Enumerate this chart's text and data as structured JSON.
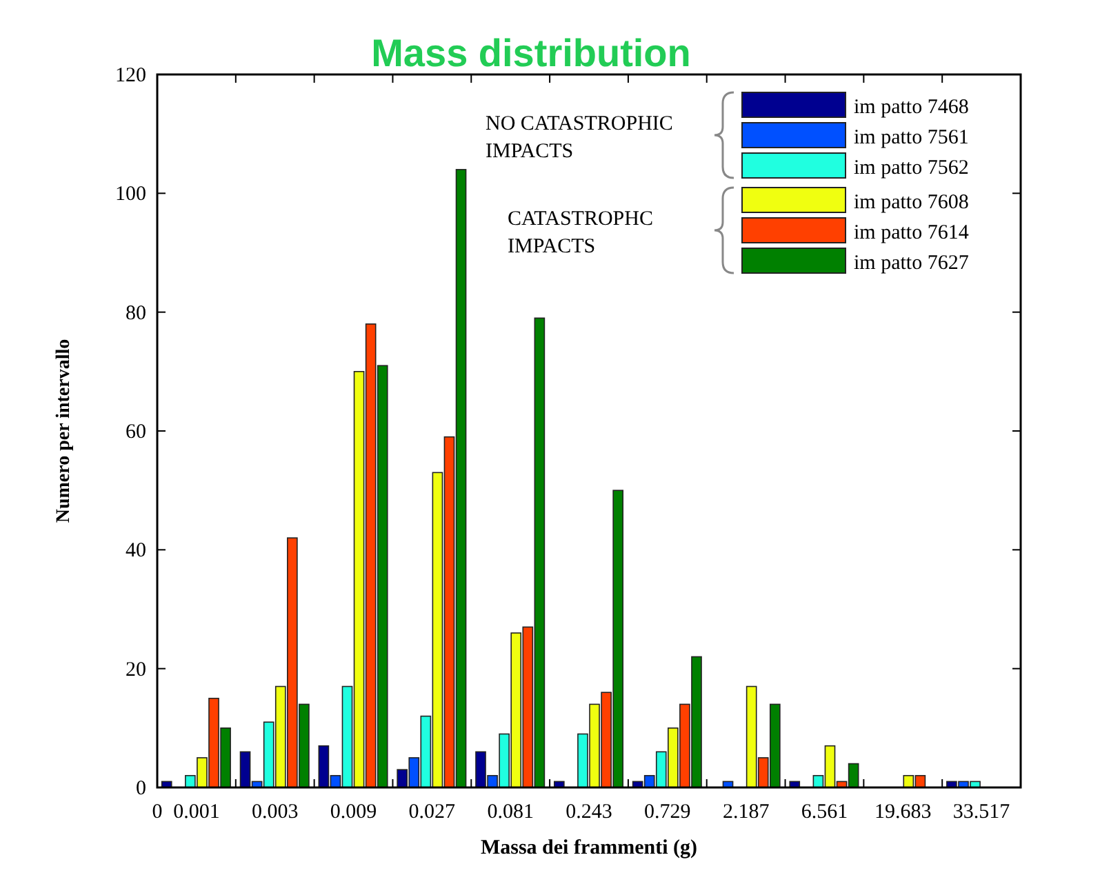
{
  "chart_data": {
    "type": "bar",
    "title": "Mass distribution",
    "xlabel": "Massa dei frammenti (g)",
    "ylabel": "Numero per intervallo",
    "categories": [
      "0.001",
      "0.003",
      "0.009",
      "0.027",
      "0.081",
      "0.243",
      "0.729",
      "2.187",
      "6.561",
      "19.683",
      "33.517"
    ],
    "ylim": [
      0,
      120
    ],
    "yticks": [
      0,
      20,
      40,
      60,
      80,
      100,
      120
    ],
    "legend": "top right",
    "grid": false,
    "annotations": [
      "0",
      "NO CATASTROPHIC IMPACTS",
      "CATASTROPHC IMPACTS"
    ],
    "series": [
      {
        "name": "im patto 7468",
        "color": "#000090",
        "values": [
          1,
          6,
          7,
          3,
          6,
          1,
          1,
          0,
          1,
          0,
          1
        ]
      },
      {
        "name": "im patto 7561",
        "color": "#0050ff",
        "values": [
          0,
          1,
          2,
          5,
          2,
          0,
          2,
          1,
          0,
          0,
          1
        ]
      },
      {
        "name": "im patto 7562",
        "color": "#20ffe0",
        "values": [
          2,
          11,
          17,
          12,
          9,
          9,
          6,
          0,
          2,
          0,
          1
        ]
      },
      {
        "name": "im patto 7608",
        "color": "#f0ff10",
        "values": [
          5,
          17,
          70,
          53,
          26,
          14,
          10,
          17,
          7,
          2,
          0
        ]
      },
      {
        "name": "im patto 7614",
        "color": "#ff4000",
        "values": [
          15,
          42,
          78,
          59,
          27,
          16,
          14,
          5,
          1,
          2,
          0
        ]
      },
      {
        "name": "im patto 7627",
        "color": "#008000",
        "values": [
          10,
          14,
          71,
          104,
          79,
          50,
          22,
          14,
          4,
          0,
          0
        ]
      }
    ]
  }
}
